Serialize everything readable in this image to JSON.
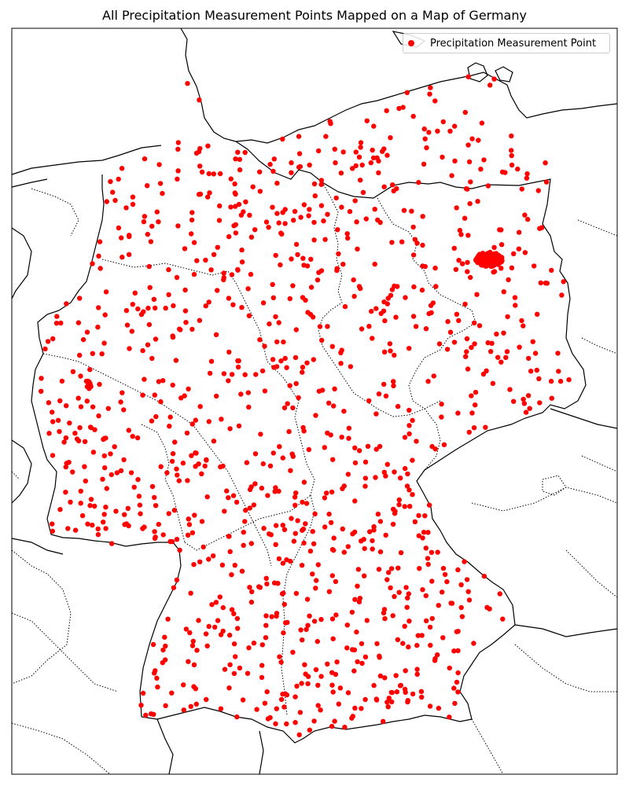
{
  "title": "All Precipitation Measurement Points Mapped on a Map of Germany",
  "legend": {
    "label": "Precipitation Measurement Point",
    "placement": "upper-right"
  },
  "colors": {
    "point": "#ff0000",
    "border": "#000000",
    "background": "#ffffff"
  },
  "chart_data": {
    "type": "scatter",
    "title": "All Precipitation Measurement Points Mapped on a Map of Germany",
    "xlim": [
      5.6,
      15.6
    ],
    "ylim": [
      47.1,
      55.3
    ],
    "series": [
      {
        "name": "Precipitation Measurement Point",
        "marker": "circle",
        "color": "#ff0000",
        "count_estimate": 2000
      }
    ],
    "layers": [
      "country borders",
      "state borders",
      "coastlines"
    ],
    "axis_ticks": false,
    "grid": false
  }
}
